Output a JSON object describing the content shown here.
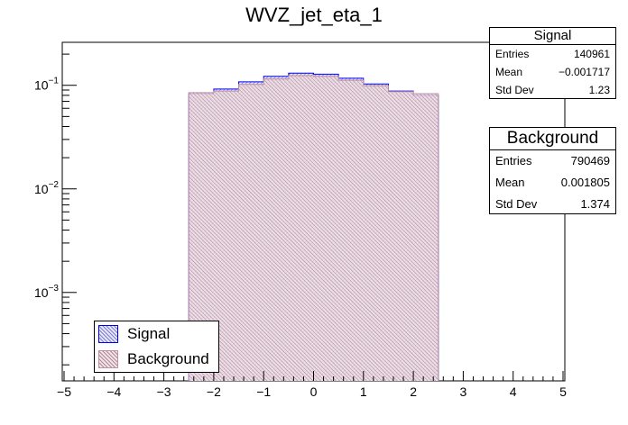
{
  "chart_data": {
    "type": "bar",
    "title": "WVZ_jet_eta_1",
    "xlabel": "",
    "ylabel": "",
    "xlim": [
      -5,
      5
    ],
    "ylim": [
      0.00014,
      0.26
    ],
    "yscale": "log",
    "bin_edges": [
      -2.5,
      -2.0,
      -1.5,
      -1.0,
      -0.5,
      0.0,
      0.5,
      1.0,
      1.5,
      2.0,
      2.5
    ],
    "series": [
      {
        "name": "Signal",
        "color": "#0000ff",
        "values": [
          0.083,
          0.092,
          0.108,
          0.122,
          0.131,
          0.128,
          0.117,
          0.103,
          0.088,
          0.08
        ]
      },
      {
        "name": "Background",
        "color": "#c090a0",
        "values": [
          0.085,
          0.088,
          0.102,
          0.115,
          0.124,
          0.122,
          0.112,
          0.099,
          0.087,
          0.083
        ]
      }
    ],
    "x_ticks": [
      "−5",
      "−4",
      "−3",
      "−2",
      "−1",
      "0",
      "1",
      "2",
      "3",
      "4",
      "5"
    ],
    "y_ticks": [
      {
        "base": "10",
        "exp": "−1",
        "value": 0.1
      },
      {
        "base": "10",
        "exp": "−2",
        "value": 0.01
      },
      {
        "base": "10",
        "exp": "−3",
        "value": 0.001
      }
    ],
    "legend": {
      "position": "bottom-left",
      "entries": [
        "Signal",
        "Background"
      ]
    }
  },
  "stats": {
    "signal": {
      "title": "Signal",
      "rows": [
        {
          "label": "Entries",
          "value": "140961"
        },
        {
          "label": "Mean",
          "value": "−0.001717"
        },
        {
          "label": "Std Dev",
          "value": "1.23"
        }
      ]
    },
    "background": {
      "title": "Background",
      "rows": [
        {
          "label": "Entries",
          "value": "790469"
        },
        {
          "label": "Mean",
          "value": "0.001805"
        },
        {
          "label": "Std Dev",
          "value": "1.374"
        }
      ]
    }
  }
}
